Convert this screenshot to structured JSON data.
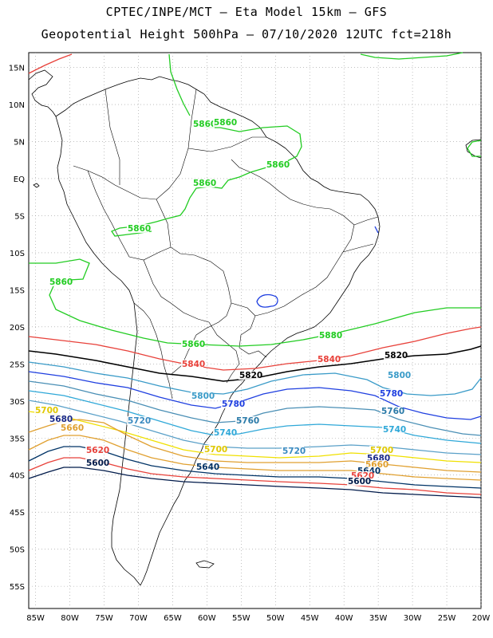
{
  "title_line1": "CPTEC/INPE/MCT –  Eta Model 15km – GFS",
  "title_line2": "Geopotential Height 500hPa – 07/10/2020 12UTC fct=218h",
  "lat_labels": [
    "15N",
    "10N",
    "5N",
    "EQ",
    "5S",
    "10S",
    "15S",
    "20S",
    "25S",
    "30S",
    "35S",
    "40S",
    "45S",
    "50S",
    "55S"
  ],
  "lon_labels": [
    "85W",
    "80W",
    "75W",
    "70W",
    "65W",
    "60W",
    "55W",
    "50W",
    "45W",
    "40W",
    "35W",
    "30W",
    "25W",
    "20W"
  ],
  "colors": {
    "c5880": "#22cc22",
    "c5860": "#22cc22",
    "c5840": "#e8413a",
    "c5820": "#000000",
    "c5800": "#3a9bc8",
    "c5780": "#1f3fe0",
    "c5760": "#4a8fb5",
    "c5740": "#2fa8d8",
    "c5720": "#5aa0c8",
    "c5700": "#f0e000",
    "c5680": "#e0a030",
    "c5660": "#1a2a8a",
    "c5640": "#003366",
    "c5620": "#e8413a",
    "c5600": "#001a4a",
    "coast": "#000000"
  },
  "contour_labels": [
    {
      "id": "l5880a",
      "text": "5880",
      "color": "#22cc22"
    },
    {
      "id": "l5860a",
      "text": "5860",
      "color": "#22cc22"
    },
    {
      "id": "l5860b",
      "text": "5860",
      "color": "#22cc22"
    },
    {
      "id": "l5860c",
      "text": "5860",
      "color": "#22cc22"
    },
    {
      "id": "l5860d",
      "text": "5860",
      "color": "#22cc22"
    },
    {
      "id": "l5860e",
      "text": "5860",
      "color": "#22cc22"
    },
    {
      "id": "l5860f",
      "text": "5860",
      "color": "#22cc22"
    },
    {
      "id": "l5860g",
      "text": "5860",
      "color": "#22cc22"
    },
    {
      "id": "l5840a",
      "text": "5840",
      "color": "#e8413a"
    },
    {
      "id": "l5840b",
      "text": "5840",
      "color": "#e8413a"
    },
    {
      "id": "l5820a",
      "text": "5820",
      "color": "#000000"
    },
    {
      "id": "l5820b",
      "text": "5820",
      "color": "#000000"
    },
    {
      "id": "l5800a",
      "text": "5800",
      "color": "#3a9bc8"
    },
    {
      "id": "l5800b",
      "text": "5800",
      "color": "#3a9bc8"
    },
    {
      "id": "l5780a",
      "text": "5780",
      "color": "#1f3fe0"
    },
    {
      "id": "l5780b",
      "text": "5780",
      "color": "#1f3fe0"
    },
    {
      "id": "l5760a",
      "text": "5760",
      "color": "#2a7aa8"
    },
    {
      "id": "l5760b",
      "text": "5760",
      "color": "#2a7aa8"
    },
    {
      "id": "l5740a",
      "text": "5740",
      "color": "#2fa8d8"
    },
    {
      "id": "l5740b",
      "text": "5740",
      "color": "#2fa8d8"
    },
    {
      "id": "l5720a",
      "text": "5720",
      "color": "#3a8ac0"
    },
    {
      "id": "l5720b",
      "text": "5720",
      "color": "#3a8ac0"
    },
    {
      "id": "l5700a",
      "text": "5700",
      "color": "#e0c800"
    },
    {
      "id": "l5700b",
      "text": "5700",
      "color": "#e0c800"
    },
    {
      "id": "l5700c",
      "text": "5700",
      "color": "#e0c800"
    },
    {
      "id": "l5680a",
      "text": "5680",
      "color": "#1a2a8a"
    },
    {
      "id": "l5680b",
      "text": "5680",
      "color": "#1a2a8a"
    },
    {
      "id": "l5660a",
      "text": "5660",
      "color": "#e0a030"
    },
    {
      "id": "l5660b",
      "text": "5660",
      "color": "#e0a030"
    },
    {
      "id": "l5640a",
      "text": "5640",
      "color": "#003366"
    },
    {
      "id": "l5640b",
      "text": "5640",
      "color": "#003366"
    },
    {
      "id": "l5620a",
      "text": "5620",
      "color": "#e8413a"
    },
    {
      "id": "l5620b",
      "text": "5620",
      "color": "#e8413a"
    },
    {
      "id": "l5600a",
      "text": "5600",
      "color": "#001a4a"
    },
    {
      "id": "l5600b",
      "text": "5600",
      "color": "#001a4a"
    }
  ]
}
